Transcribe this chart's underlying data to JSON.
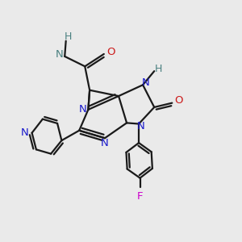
{
  "bg_color": "#eaeaea",
  "bond_color": "#1a1a1a",
  "bond_width": 1.6,
  "atom_colors": {
    "N": "#1a1acc",
    "O": "#cc1a1a",
    "F": "#cc00cc",
    "NH": "#4a8080",
    "H": "#4a8080"
  }
}
